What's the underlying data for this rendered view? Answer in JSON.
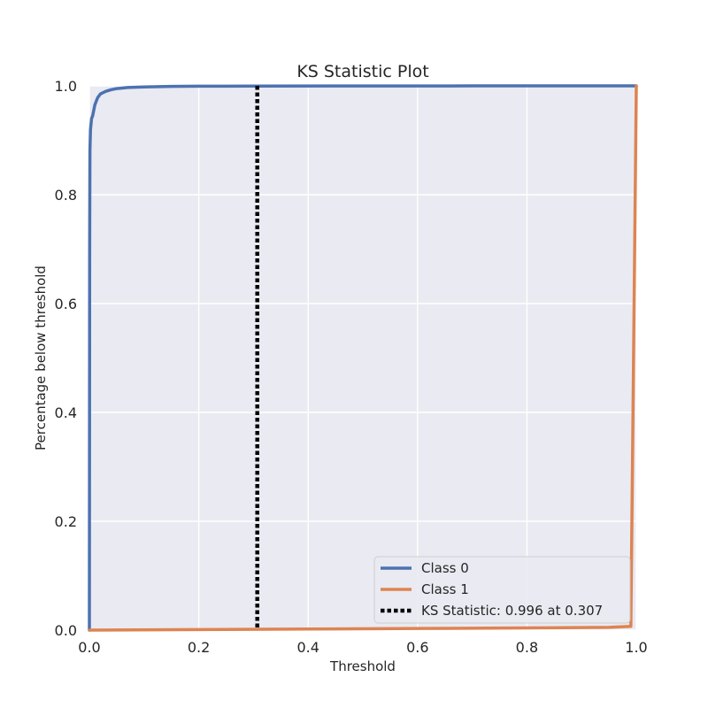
{
  "chart_data": {
    "type": "line",
    "title": "KS Statistic Plot",
    "xlabel": "Threshold",
    "ylabel": "Percentage below threshold",
    "xlim": [
      0.0,
      1.0
    ],
    "ylim": [
      0.0,
      1.0
    ],
    "xticks": [
      "0.0",
      "0.2",
      "0.4",
      "0.6",
      "0.8",
      "1.0"
    ],
    "yticks": [
      "0.0",
      "0.2",
      "0.4",
      "0.6",
      "0.8",
      "1.0"
    ],
    "grid": true,
    "legend_position": "lower-right",
    "series": [
      {
        "name": "Class 0",
        "color": "#4c72b0",
        "x": [
          0.0,
          0.0005,
          0.001,
          0.002,
          0.004,
          0.006,
          0.008,
          0.01,
          0.015,
          0.02,
          0.03,
          0.04,
          0.05,
          0.07,
          0.1,
          0.15,
          0.2,
          0.3,
          0.5,
          0.7,
          1.0
        ],
        "y": [
          0.0,
          0.7,
          0.88,
          0.92,
          0.94,
          0.945,
          0.955,
          0.965,
          0.978,
          0.985,
          0.99,
          0.993,
          0.995,
          0.997,
          0.998,
          0.999,
          0.9993,
          0.9996,
          0.9998,
          0.9999,
          1.0
        ]
      },
      {
        "name": "Class 1",
        "color": "#dd8452",
        "x": [
          0.0,
          0.2,
          0.4,
          0.6,
          0.8,
          0.95,
          0.99,
          1.0
        ],
        "y": [
          0.0,
          0.001,
          0.002,
          0.003,
          0.004,
          0.005,
          0.007,
          1.0
        ]
      }
    ],
    "ks_statistic": {
      "label": "KS Statistic: 0.996 at 0.307",
      "value": 0.996,
      "threshold": 0.307,
      "color": "#000000"
    }
  }
}
